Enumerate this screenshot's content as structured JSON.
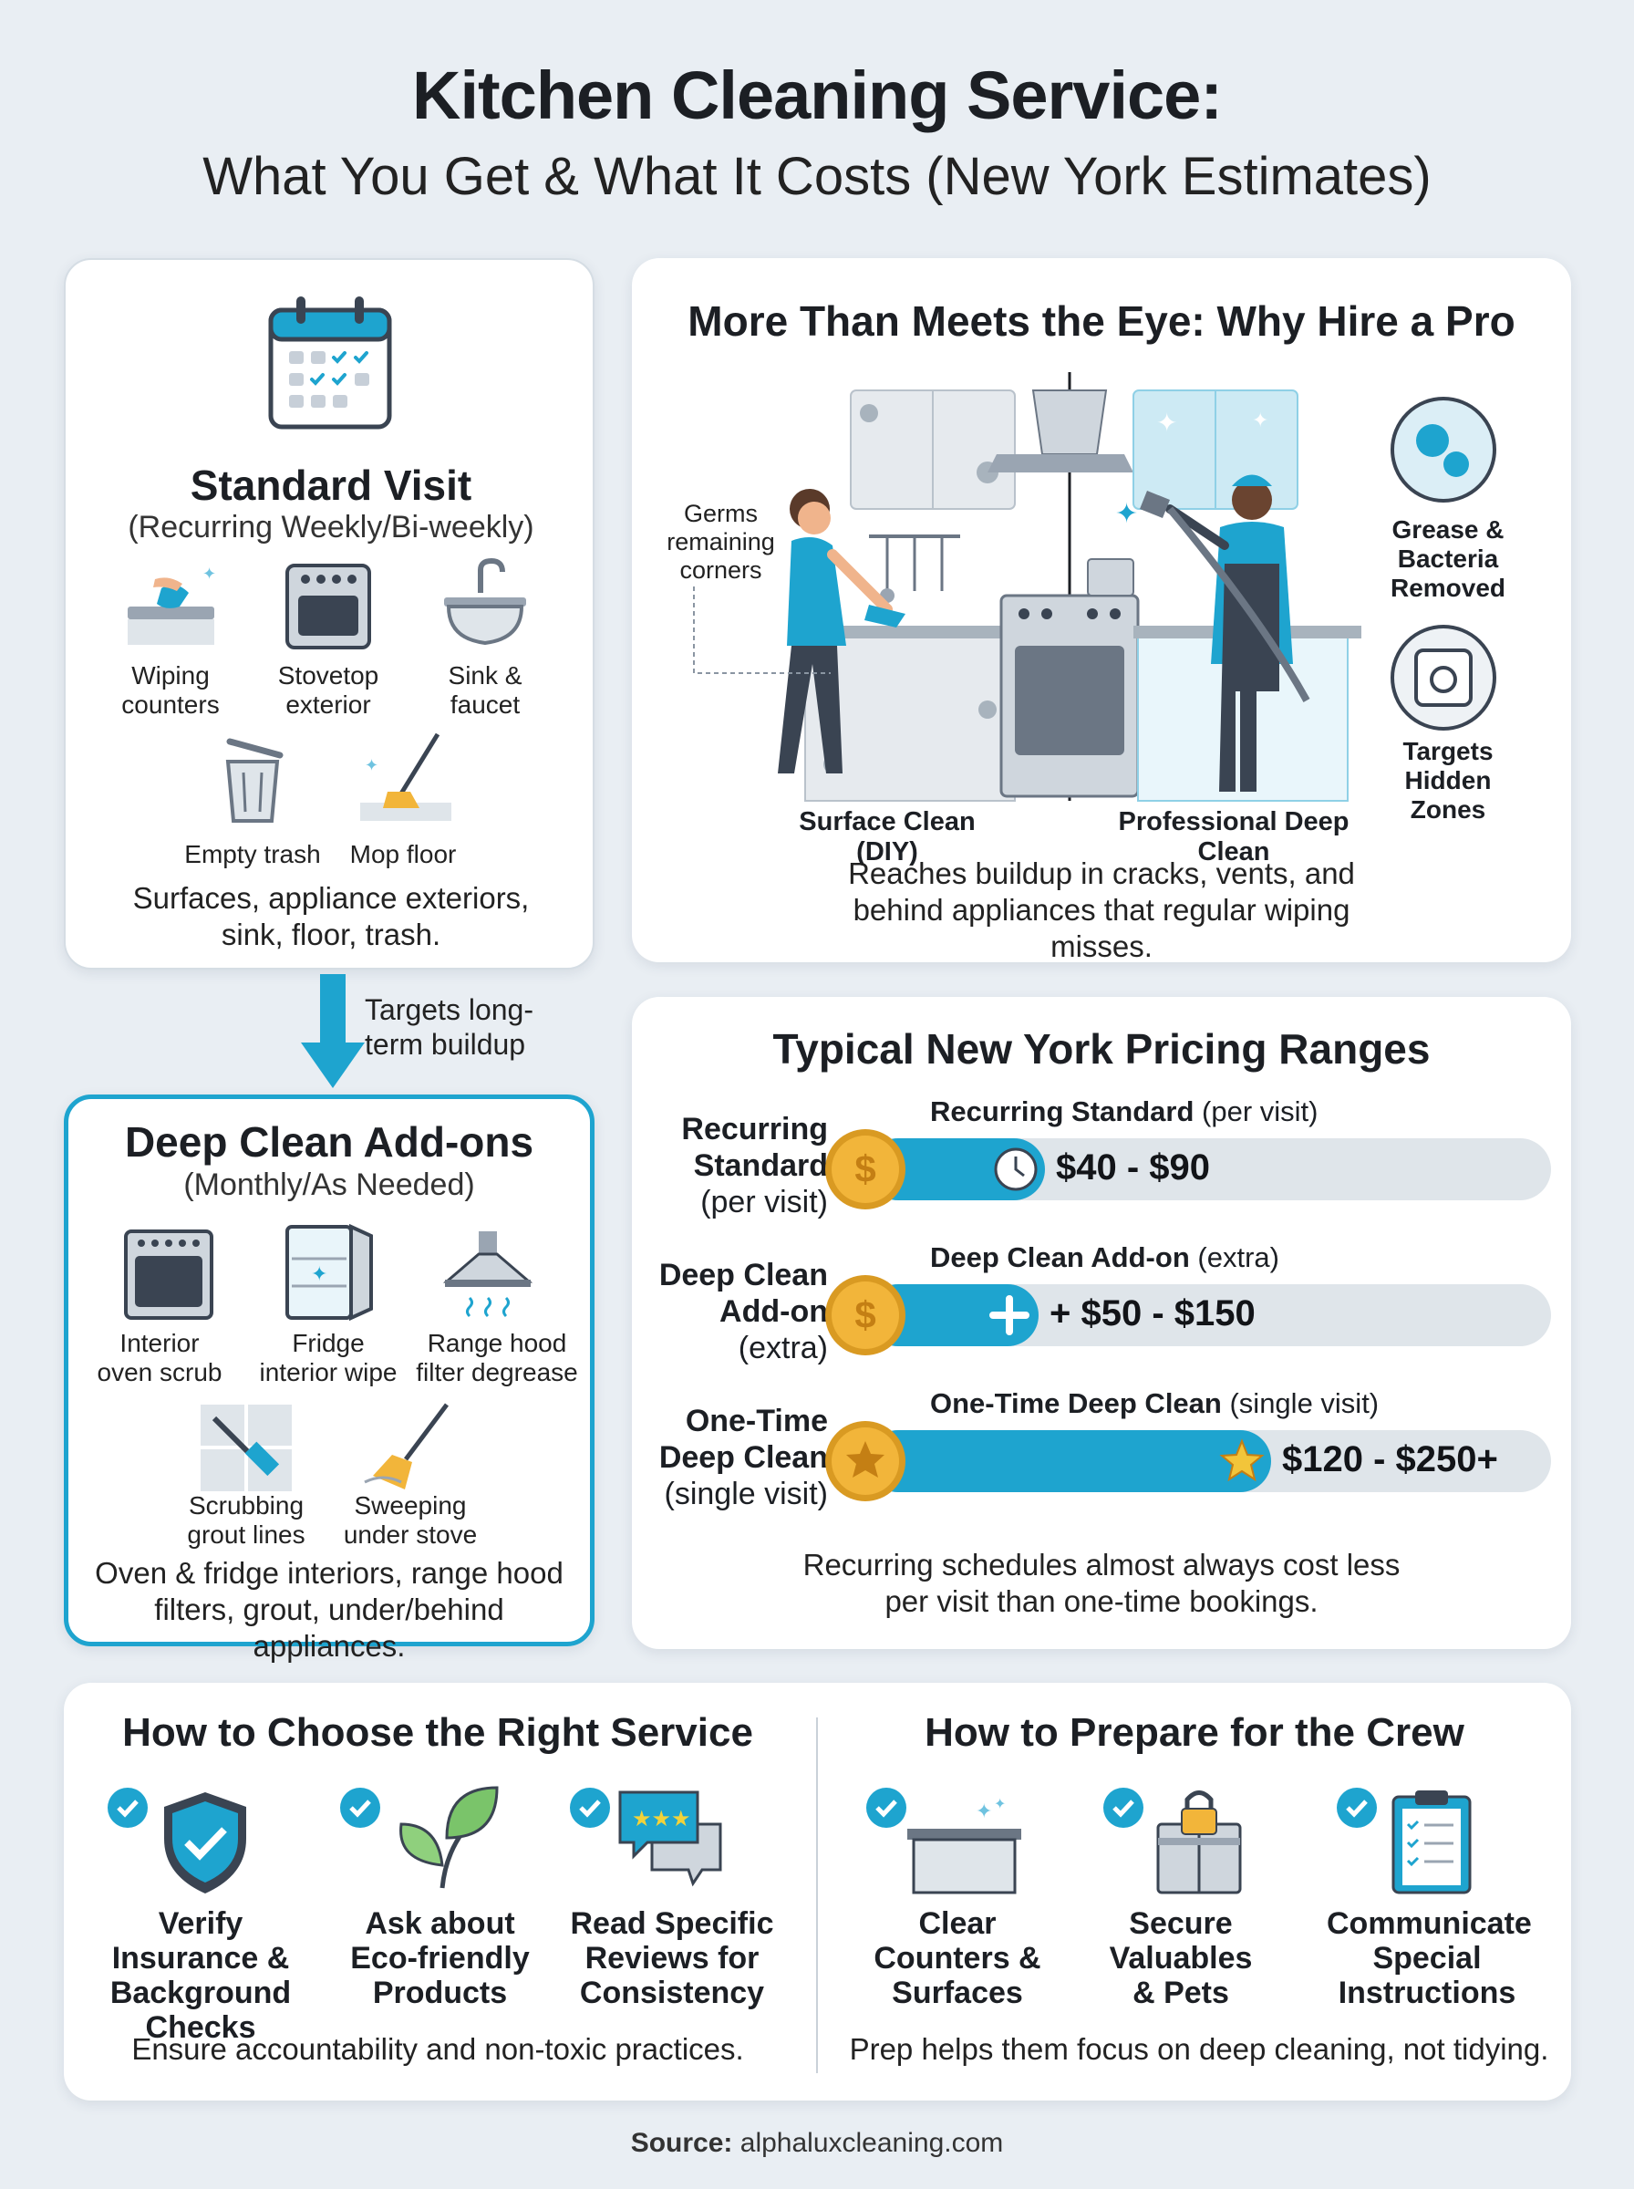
{
  "header": {
    "title": "Kitchen Cleaning Service:",
    "subtitle": "What You Get & What It Costs (New York Estimates)"
  },
  "standard_visit": {
    "title": "Standard Visit",
    "subtitle": "(Recurring Weekly/Bi-weekly)",
    "items": [
      {
        "label": "Wiping counters",
        "icon": "wiping-counters-icon"
      },
      {
        "label": "Stovetop exterior",
        "icon": "stovetop-icon"
      },
      {
        "label": "Sink & faucet",
        "icon": "sink-icon"
      },
      {
        "label": "Empty trash",
        "icon": "trash-can-icon"
      },
      {
        "label": "Mop floor",
        "icon": "mop-icon"
      }
    ],
    "summary": "Surfaces, appliance exteriors, sink, floor, trash."
  },
  "arrow_note": "Targets long-term buildup",
  "deep_clean": {
    "title": "Deep Clean Add-ons",
    "subtitle": "(Monthly/As Needed)",
    "items": [
      {
        "label": "Interior oven scrub",
        "icon": "oven-icon"
      },
      {
        "label": "Fridge interior wipe",
        "icon": "fridge-icon"
      },
      {
        "label": "Range hood filter degrease",
        "icon": "range-hood-icon"
      },
      {
        "label": "Scrubbing grout lines",
        "icon": "grout-brush-icon"
      },
      {
        "label": "Sweeping under stove",
        "icon": "broom-icon"
      }
    ],
    "summary": "Oven & fridge interiors, range hood filters, grout, under/behind appliances."
  },
  "why_pro": {
    "title": "More Than Meets the Eye: Why Hire a Pro",
    "germs_label": "Germs remaining corners",
    "grease_label": "Grease & Bacteria Removed",
    "hidden_label": "Targets Hidden Zones",
    "diy_label": "Surface Clean (DIY)",
    "pro_label": "Professional Deep Clean",
    "summary": "Reaches buildup in cracks, vents, and behind appliances that regular wiping misses."
  },
  "pricing": {
    "title": "Typical New York Pricing Ranges",
    "rows": [
      {
        "left_bold": "Recurring Standard",
        "left_sub": "(per visit)",
        "bar_title": "Recurring Standard",
        "bar_title_sub": "(per visit)",
        "price": "$40 - $90",
        "fill": 0.26,
        "coin_icon": "dollar-coin-icon",
        "marker_icon": "clock-icon"
      },
      {
        "left_bold": "Deep Clean Add-on",
        "left_sub": "(extra)",
        "bar_title": "Deep Clean Add-on",
        "bar_title_sub": "(extra)",
        "price": "+ $50 - $150",
        "fill": 0.25,
        "coin_icon": "dollar-coin-icon",
        "marker_icon": "plus-icon"
      },
      {
        "left_bold": "One-Time Deep Clean",
        "left_sub": "(single visit)",
        "bar_title": "One-Time Deep Clean",
        "bar_title_sub": "(single visit)",
        "price": "$120 - $250+",
        "fill": 0.59,
        "coin_icon": "star-coin-icon",
        "marker_icon": "star-icon"
      }
    ],
    "note": "Recurring schedules almost always cost less per visit than one-time bookings."
  },
  "choose": {
    "title": "How to Choose the Right Service",
    "items": [
      {
        "label": "Verify Insurance & Background Checks",
        "icon": "shield-check-icon"
      },
      {
        "label": "Ask about Eco-friendly Products",
        "icon": "leaf-icon"
      },
      {
        "label": "Read Specific Reviews for Consistency",
        "icon": "review-bubble-icon"
      }
    ],
    "summary": "Ensure accountability and non-toxic practices."
  },
  "prepare": {
    "title": "How to Prepare for the Crew",
    "items": [
      {
        "label": "Clear Counters & Surfaces",
        "icon": "clean-counter-icon"
      },
      {
        "label": "Secure Valuables & Pets",
        "icon": "locked-cabinet-icon"
      },
      {
        "label": "Communicate Special Instructions",
        "icon": "clipboard-icon"
      }
    ],
    "summary": "Prep helps them focus on deep cleaning, not tidying."
  },
  "source": {
    "label": "Source:",
    "value": "alphaluxcleaning.com"
  },
  "colors": {
    "accent": "#1ea4cf",
    "background": "#e9eef3",
    "bar_track": "#dfe5ea",
    "coin_gold": "#f2b53a"
  }
}
